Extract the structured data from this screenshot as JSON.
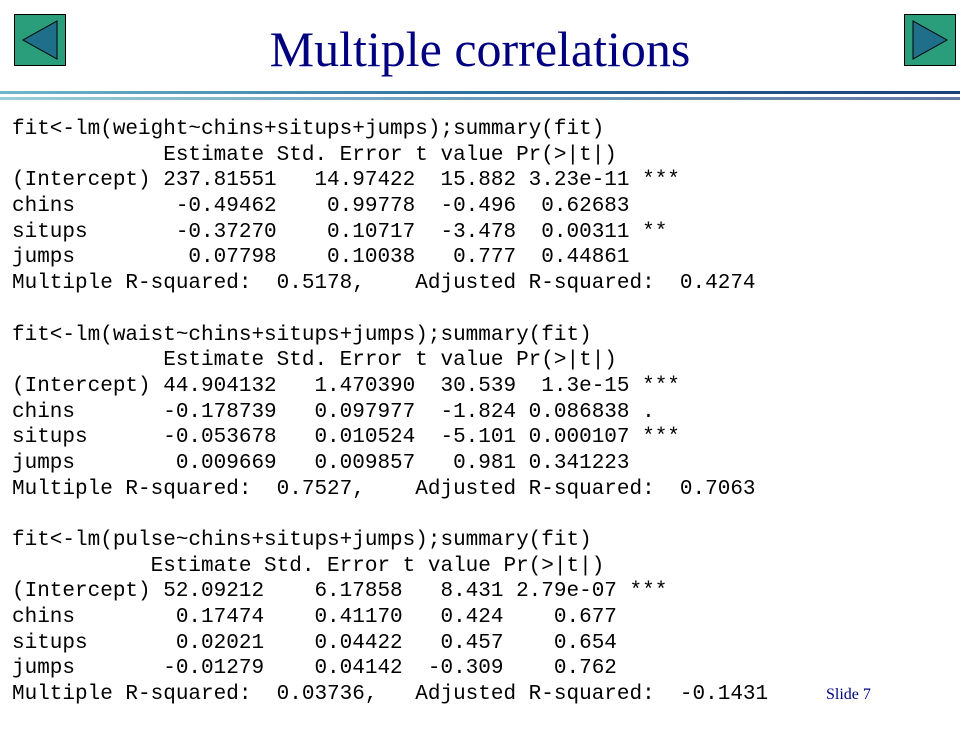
{
  "title": "Multiple correlations",
  "blocks": [
    [
      "fit<-lm(weight~chins+situps+jumps);summary(fit)",
      "            Estimate Std. Error t value Pr(>|t|)",
      "(Intercept) 237.81551   14.97422  15.882 3.23e-11 ***",
      "chins        -0.49462    0.99778  -0.496  0.62683",
      "situps       -0.37270    0.10717  -3.478  0.00311 **",
      "jumps         0.07798    0.10038   0.777  0.44861",
      "Multiple R-squared:  0.5178,    Adjusted R-squared:  0.4274"
    ],
    [
      "fit<-lm(waist~chins+situps+jumps);summary(fit)",
      "            Estimate Std. Error t value Pr(>|t|)",
      "(Intercept) 44.904132   1.470390  30.539  1.3e-15 ***",
      "chins       -0.178739   0.097977  -1.824 0.086838 .",
      "situps      -0.053678   0.010524  -5.101 0.000107 ***",
      "jumps        0.009669   0.009857   0.981 0.341223",
      "Multiple R-squared:  0.7527,    Adjusted R-squared:  0.7063"
    ],
    [
      "fit<-lm(pulse~chins+situps+jumps);summary(fit)",
      "           Estimate Std. Error t value Pr(>|t|)",
      "(Intercept) 52.09212    6.17858   8.431 2.79e-07 ***",
      "chins        0.17474    0.41170   0.424    0.677",
      "situps       0.02021    0.04422   0.457    0.654",
      "jumps       -0.01279    0.04142  -0.309    0.762",
      "Multiple R-squared:  0.03736,   Adjusted R-squared:  -0.1431"
    ]
  ],
  "slide_number": "Slide 7"
}
